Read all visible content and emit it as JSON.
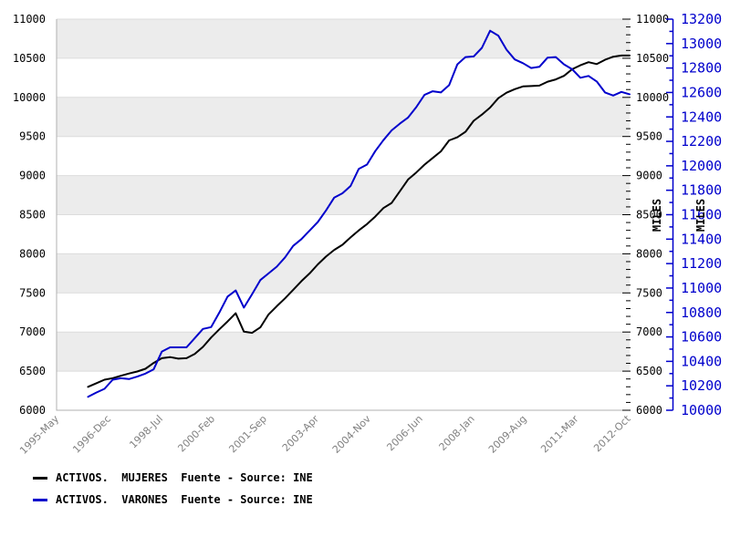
{
  "colors": {
    "series_mujeres": "#000000",
    "series_varones": "#0000cc",
    "band_gray": "#ececec",
    "band_white": "#ffffff",
    "gridline": "#dcdcdc",
    "plot_border": "#b0b0b0",
    "x_label_gray": "#808080",
    "blue_axis": "#0000cc"
  },
  "legend": {
    "items": [
      {
        "swatch_color": "#000000",
        "label": "ACTIVOS.  MUJERES  Fuente - Source: INE"
      },
      {
        "swatch_color": "#0000cc",
        "label": "ACTIVOS.  VARONES  Fuente - Source: INE"
      }
    ]
  },
  "chart_data": {
    "type": "line",
    "title": "",
    "xlabel": "",
    "grid": "horizontal-bands",
    "legend_position": "bottom-left",
    "x_tick_labels": [
      "1995-May",
      "1996-Dec",
      "1998-Jul",
      "2000-Feb",
      "2001-Sep",
      "2003-Apr",
      "2004-Nov",
      "2006-Jun",
      "2008-Jan",
      "2009-Aug",
      "2011-Mar",
      "2012-Oct"
    ],
    "x_axis": {
      "start": "1995-May",
      "months_span": 209.5,
      "tick_interval_months": 19,
      "data_start_offset_months": 11.5,
      "data_interval_months": 3
    },
    "x": [
      "1996-Q2",
      "1996-Q3",
      "1996-Q4",
      "1997-Q1",
      "1997-Q2",
      "1997-Q3",
      "1997-Q4",
      "1998-Q1",
      "1998-Q2",
      "1998-Q3",
      "1998-Q4",
      "1999-Q1",
      "1999-Q2",
      "1999-Q3",
      "1999-Q4",
      "2000-Q1",
      "2000-Q2",
      "2000-Q3",
      "2000-Q4",
      "2001-Q1",
      "2001-Q2",
      "2001-Q3",
      "2001-Q4",
      "2002-Q1",
      "2002-Q2",
      "2002-Q3",
      "2002-Q4",
      "2003-Q1",
      "2003-Q2",
      "2003-Q3",
      "2003-Q4",
      "2004-Q1",
      "2004-Q2",
      "2004-Q3",
      "2004-Q4",
      "2005-Q1",
      "2005-Q2",
      "2005-Q3",
      "2005-Q4",
      "2006-Q1",
      "2006-Q2",
      "2006-Q3",
      "2006-Q4",
      "2007-Q1",
      "2007-Q2",
      "2007-Q3",
      "2007-Q4",
      "2008-Q1",
      "2008-Q2",
      "2008-Q3",
      "2008-Q4",
      "2009-Q1",
      "2009-Q2",
      "2009-Q3",
      "2009-Q4",
      "2010-Q1",
      "2010-Q2",
      "2010-Q3",
      "2010-Q4",
      "2011-Q1",
      "2011-Q2",
      "2011-Q3",
      "2011-Q4",
      "2012-Q1",
      "2012-Q2",
      "2012-Q3",
      "2012-Q4"
    ],
    "series": [
      {
        "name": "ACTIVOS.  MUJERES  Fuente - Source: INE",
        "color": "#000000",
        "axis": "left",
        "unit": "MILES",
        "values": [
          6300,
          6345,
          6390,
          6410,
          6440,
          6470,
          6495,
          6530,
          6605,
          6665,
          6680,
          6660,
          6665,
          6720,
          6810,
          6930,
          7035,
          7135,
          7240,
          7005,
          6990,
          7060,
          7225,
          7330,
          7430,
          7540,
          7650,
          7750,
          7865,
          7965,
          8050,
          8115,
          8210,
          8300,
          8380,
          8475,
          8585,
          8650,
          8800,
          8950,
          9040,
          9140,
          9225,
          9310,
          9450,
          9490,
          9560,
          9700,
          9780,
          9870,
          9990,
          10060,
          10105,
          10140,
          10145,
          10150,
          10200,
          10230,
          10275,
          10360,
          10410,
          10450,
          10425,
          10480,
          10520,
          10535,
          10535
        ]
      },
      {
        "name": "ACTIVOS.  VARONES  Fuente - Source: INE",
        "color": "#0000cc",
        "axis": "right_outer",
        "unit": "MILES",
        "values": [
          10110,
          10145,
          10175,
          10250,
          10262,
          10255,
          10275,
          10300,
          10335,
          10480,
          10515,
          10515,
          10515,
          10590,
          10665,
          10680,
          10800,
          10930,
          10980,
          10840,
          10950,
          11065,
          11120,
          11175,
          11250,
          11345,
          11400,
          11470,
          11540,
          11635,
          11740,
          11775,
          11835,
          11975,
          12010,
          12120,
          12210,
          12290,
          12345,
          12395,
          12480,
          12580,
          12610,
          12600,
          12660,
          12830,
          12890,
          12895,
          12965,
          13105,
          13065,
          12950,
          12870,
          12840,
          12800,
          12810,
          12885,
          12890,
          12830,
          12790,
          12720,
          12735,
          12690,
          12600,
          12575,
          12605,
          12585
        ]
      }
    ],
    "left_axis": {
      "min": 6000,
      "max": 11000,
      "step": 500,
      "minor_step": 100,
      "tick_labels": [
        "11000",
        "10500",
        "10000",
        "9500",
        "9000",
        "8500",
        "8000",
        "7500",
        "7000",
        "6500",
        "6000"
      ],
      "title": ""
    },
    "right_inner_axis": {
      "min": 6000,
      "max": 11000,
      "step": 500,
      "minor_step": 100,
      "tick_labels": [
        "11000",
        "10500",
        "10000",
        "9500",
        "9000",
        "8500",
        "8000",
        "7500",
        "7000",
        "6500",
        "6000"
      ],
      "title": "MILES",
      "color": "#000000"
    },
    "right_outer_axis": {
      "min": 10000,
      "max": 13200,
      "step": 200,
      "minor_step": 100,
      "tick_labels": [
        "13200",
        "13000",
        "12800",
        "12600",
        "12400",
        "12200",
        "12000",
        "11800",
        "11600",
        "11400",
        "11200",
        "11000",
        "10800",
        "10600",
        "10400",
        "10200",
        "10000"
      ],
      "title": "MILES",
      "color": "#0000cc"
    }
  }
}
